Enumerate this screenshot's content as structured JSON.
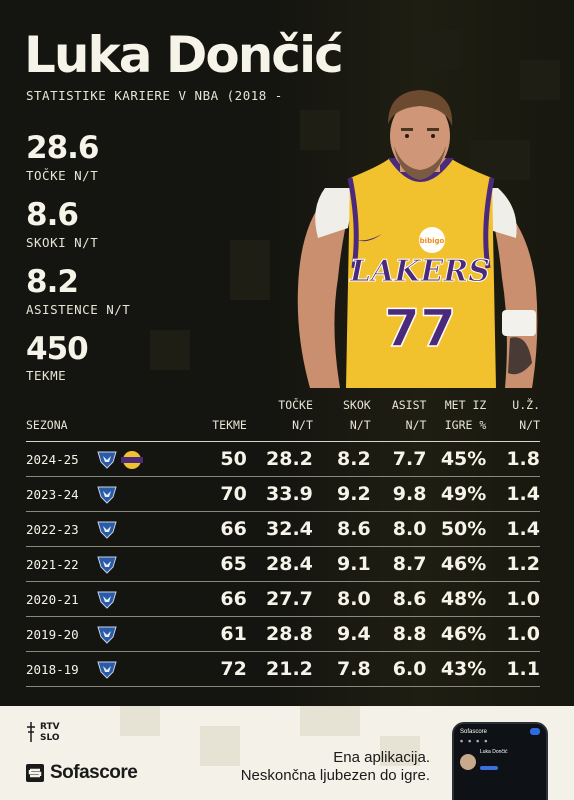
{
  "header": {
    "title": "Luka Dončić",
    "subtitle": "STATISTIKE KARIERE V NBA (2018 -"
  },
  "career_stats": [
    {
      "value": "28.6",
      "label": "TOČKE N/T"
    },
    {
      "value": "8.6",
      "label": "SKOKI N/T"
    },
    {
      "value": "8.2",
      "label": "ASISTENCE N/T"
    },
    {
      "value": "450",
      "label": "TEKME"
    }
  ],
  "player_image": {
    "jersey_team": "LAKERS",
    "jersey_number": "77",
    "sponsor": "bibigo"
  },
  "table": {
    "headers": {
      "season": "SEZONA",
      "games": "TEKME",
      "points": "TOČKE\nN/T",
      "rebounds": "SKOK\nN/T",
      "assists": "ASIST\nN/T",
      "fg": "MET IZ\nIGRE %",
      "to": "U.Ž.\nN/T"
    },
    "rows": [
      {
        "season": "2024-25",
        "teams": [
          "mavericks-logo",
          "lakers-logo"
        ],
        "games": "50",
        "points": "28.2",
        "rebounds": "8.2",
        "assists": "7.7",
        "fg": "45%",
        "to": "1.8"
      },
      {
        "season": "2023-24",
        "teams": [
          "mavericks-logo"
        ],
        "games": "70",
        "points": "33.9",
        "rebounds": "9.2",
        "assists": "9.8",
        "fg": "49%",
        "to": "1.4"
      },
      {
        "season": "2022-23",
        "teams": [
          "mavericks-logo"
        ],
        "games": "66",
        "points": "32.4",
        "rebounds": "8.6",
        "assists": "8.0",
        "fg": "50%",
        "to": "1.4"
      },
      {
        "season": "2021-22",
        "teams": [
          "mavericks-logo"
        ],
        "games": "65",
        "points": "28.4",
        "rebounds": "9.1",
        "assists": "8.7",
        "fg": "46%",
        "to": "1.2"
      },
      {
        "season": "2020-21",
        "teams": [
          "mavericks-logo"
        ],
        "games": "66",
        "points": "27.7",
        "rebounds": "8.0",
        "assists": "8.6",
        "fg": "48%",
        "to": "1.0"
      },
      {
        "season": "2019-20",
        "teams": [
          "mavericks-logo"
        ],
        "games": "61",
        "points": "28.8",
        "rebounds": "9.4",
        "assists": "8.8",
        "fg": "46%",
        "to": "1.0"
      },
      {
        "season": "2018-19",
        "teams": [
          "mavericks-logo"
        ],
        "games": "72",
        "points": "21.2",
        "rebounds": "7.8",
        "assists": "6.0",
        "fg": "43%",
        "to": "1.1"
      }
    ]
  },
  "footer": {
    "rtv_logo": "RTV SLO",
    "brand": "Sofascore",
    "tagline_line1": "Ena aplikacija.",
    "tagline_line2": "Neskončna ljubezen do igre.",
    "phone_app_name": "Sofascore",
    "phone_player_name": "Luka Dončić"
  },
  "colors": {
    "background": "#141410",
    "text": "#f6f3e8",
    "footer_bg": "#f3f1e8",
    "lakers_gold": "#f2c12e",
    "lakers_purple": "#4b2a7b",
    "mavs_blue": "#2a5ba8"
  }
}
